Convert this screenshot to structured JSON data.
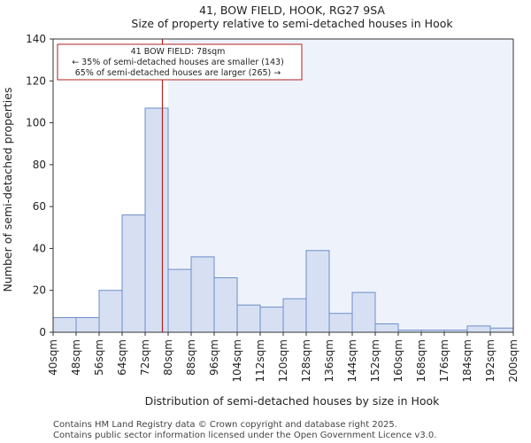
{
  "chart_data": {
    "type": "bar",
    "title": "41, BOW FIELD, HOOK, RG27 9SA",
    "subtitle": "Size of property relative to semi-detached houses in Hook",
    "xlabel": "Distribution of semi-detached houses by size in Hook",
    "ylabel": "Number of semi-detached properties",
    "x_ticks": [
      "40sqm",
      "48sqm",
      "56sqm",
      "64sqm",
      "72sqm",
      "80sqm",
      "88sqm",
      "96sqm",
      "104sqm",
      "112sqm",
      "120sqm",
      "128sqm",
      "136sqm",
      "144sqm",
      "152sqm",
      "160sqm",
      "168sqm",
      "176sqm",
      "184sqm",
      "192sqm",
      "200sqm"
    ],
    "bin_edges": [
      40,
      48,
      56,
      64,
      72,
      80,
      88,
      96,
      104,
      112,
      120,
      128,
      136,
      144,
      152,
      160,
      168,
      176,
      184,
      192,
      200
    ],
    "values": [
      7,
      7,
      20,
      56,
      107,
      30,
      36,
      26,
      13,
      12,
      16,
      39,
      9,
      19,
      4,
      1,
      1,
      1,
      3,
      2
    ],
    "ylim": [
      0,
      140
    ],
    "y_ticks": [
      0,
      20,
      40,
      60,
      80,
      100,
      120,
      140
    ],
    "marker_value": 78,
    "colors": {
      "bar_fill": "#d6e0f2",
      "bar_edge": "#6d8ec9",
      "highlight": "#eef2fb",
      "marker": "#b22222"
    },
    "annotation": {
      "line1": "41 BOW FIELD: 78sqm",
      "line2": "← 35% of semi-detached houses are smaller (143)",
      "line3": "65% of semi-detached houses are larger (265) →"
    }
  },
  "footer": {
    "line1": "Contains HM Land Registry data © Crown copyright and database right 2025.",
    "line2": "Contains public sector information licensed under the Open Government Licence v3.0."
  }
}
